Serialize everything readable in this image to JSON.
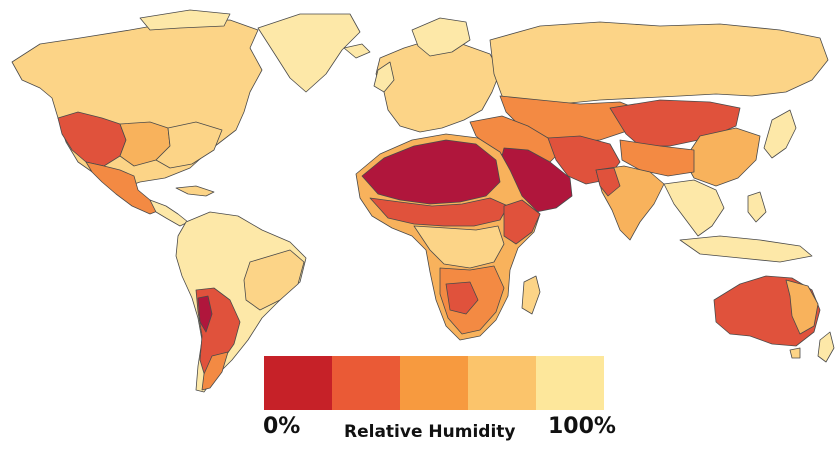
{
  "legend": {
    "title": "Relative Humidity",
    "min_label": "0%",
    "max_label": "100%",
    "colors": [
      "#c62128",
      "#ea5a36",
      "#f79a3f",
      "#fbc46b",
      "#fde79b"
    ]
  },
  "palette": {
    "ocean": "#ffffff",
    "border": "#4a4a4a",
    "very_dry": "#b0163c",
    "dry": "#e0523c",
    "mid_dry": "#f38a43",
    "mid": "#f8b25c",
    "humid": "#fcd487",
    "very_humid": "#fde8a8"
  }
}
